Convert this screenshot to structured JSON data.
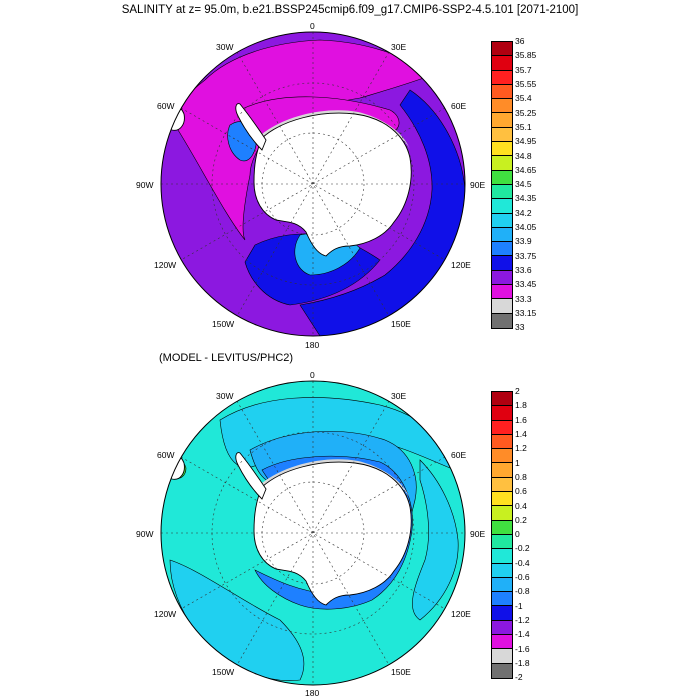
{
  "title": "SALINITY at z=  95.0m, b.e21.BSSP245cmip6.f09_g17.CMIP6-SSP2-4.5.101 [2071-2100]",
  "subtitle": "(MODEL - LEVITUS/PHC2)",
  "longitude_labels": [
    "0",
    "30E",
    "60E",
    "90E",
    "120E",
    "150E",
    "180",
    "150W",
    "120W",
    "90W",
    "60W",
    "30W"
  ],
  "colors": {
    "land": "#ffffff",
    "ice_shelf": "#d8d8d8",
    "coast": "#000000",
    "grid": "#333333"
  },
  "panels": [
    {
      "id": "salinity",
      "colorbar": {
        "labels": [
          "36",
          "35.85",
          "35.7",
          "35.55",
          "35.4",
          "35.25",
          "35.1",
          "34.95",
          "34.8",
          "34.65",
          "34.5",
          "34.35",
          "34.2",
          "34.05",
          "33.9",
          "33.75",
          "33.6",
          "33.45",
          "33.3",
          "33.15",
          "33"
        ],
        "colors": [
          "#b00010",
          "#e00010",
          "#ff2020",
          "#ff5a20",
          "#ff8c28",
          "#ffa830",
          "#ffc040",
          "#ffe020",
          "#c8f020",
          "#40e040",
          "#20e8a0",
          "#20e8d8",
          "#20d0f0",
          "#20b0f8",
          "#1e80ff",
          "#1010e8",
          "#8c18e0",
          "#e010e0",
          "#d8d8d8",
          "#707070"
        ]
      },
      "main_color": "#8c18e0",
      "patches": [
        {
          "color": "#e010e0",
          "region": "drake-weddell-band"
        },
        {
          "color": "#e010e0",
          "region": "weddell-gyre"
        },
        {
          "color": "#1010e8",
          "region": "east-indian-sector"
        },
        {
          "color": "#1010e8",
          "region": "ross-sector"
        },
        {
          "color": "#20b0f8",
          "region": "ross-sea-shelf"
        },
        {
          "color": "#1e80ff",
          "region": "amundsen-shelf"
        }
      ]
    },
    {
      "id": "difference",
      "colorbar": {
        "labels": [
          "2",
          "1.8",
          "1.6",
          "1.4",
          "1.2",
          "1",
          "0.8",
          "0.6",
          "0.4",
          "0.2",
          "0",
          "-0.2",
          "-0.4",
          "-0.6",
          "-0.8",
          "-1",
          "-1.2",
          "-1.4",
          "-1.6",
          "-1.8",
          "-2"
        ],
        "colors": [
          "#b00010",
          "#e00010",
          "#ff2020",
          "#ff5a20",
          "#ff8c28",
          "#ffa830",
          "#ffc040",
          "#ffe020",
          "#c8f020",
          "#40e040",
          "#20e8a0",
          "#20e8d8",
          "#20d0f0",
          "#20b0f8",
          "#1e80ff",
          "#1010e8",
          "#8c18e0",
          "#e010e0",
          "#d8d8d8",
          "#707070"
        ]
      },
      "main_color": "#20e8d8",
      "patches": [
        {
          "color": "#20d0f0",
          "region": "weddell-band"
        },
        {
          "color": "#20b0f8",
          "region": "weddell-gyre"
        },
        {
          "color": "#1e80ff",
          "region": "coastal-current"
        },
        {
          "color": "#20d0f0",
          "region": "south-pacific"
        },
        {
          "color": "#20d0f0",
          "region": "indian-sector"
        },
        {
          "color": "#40e040",
          "region": "patagonia-shelf"
        }
      ]
    }
  ]
}
